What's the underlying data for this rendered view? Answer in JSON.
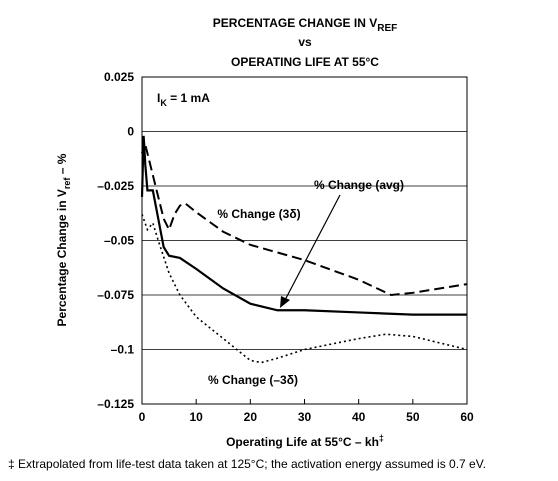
{
  "chart_data": {
    "type": "line",
    "title": [
      "PERCENTAGE CHANGE IN V",
      "vs",
      "OPERATING LIFE AT 55°C"
    ],
    "title_subscript": "REF",
    "ylabel": [
      "Percentage Change in V",
      "ref",
      " – %"
    ],
    "xlabel": [
      "Operating Life at 55°C – kh",
      "‡"
    ],
    "condition": [
      "I",
      "K",
      " = 1 mA"
    ],
    "footnote": "‡ Extrapolated from life-test data taken at 125°C; the activation energy assumed is 0.7 eV.",
    "xlim": [
      0,
      60
    ],
    "xticks": [
      0,
      10,
      20,
      30,
      40,
      50,
      60
    ],
    "ylim": [
      -0.125,
      0.025
    ],
    "yticks": [
      0.025,
      0,
      {
        "value": -0.025,
        "label": "–0.025"
      },
      {
        "value": -0.05,
        "label": "–0.05"
      },
      {
        "value": -0.075,
        "label": "–0.075"
      },
      {
        "value": -0.1,
        "label": "–0.1"
      },
      {
        "value": -0.125,
        "label": "–0.125"
      }
    ],
    "grid": true,
    "series": [
      {
        "name": "% Change  (avg)",
        "color": "#000000",
        "style": "solid",
        "x": [
          0,
          0.3,
          0.6,
          1,
          2,
          3,
          4,
          5,
          7,
          10,
          15,
          20,
          25,
          30,
          40,
          50,
          60
        ],
        "values": [
          -0.03,
          -0.002,
          -0.015,
          -0.027,
          -0.027,
          -0.04,
          -0.053,
          -0.057,
          -0.058,
          -0.063,
          -0.072,
          -0.079,
          -0.082,
          -0.082,
          -0.083,
          -0.084,
          -0.084
        ]
      },
      {
        "name": "% Change  (3δ)",
        "color": "#000000",
        "style": "dashed",
        "x": [
          0,
          0.5,
          1,
          2,
          3,
          4,
          5,
          6,
          7,
          8,
          10,
          15,
          20,
          30,
          40,
          46,
          50,
          60
        ],
        "values": [
          -0.01,
          -0.005,
          -0.01,
          -0.02,
          -0.03,
          -0.04,
          -0.045,
          -0.038,
          -0.034,
          -0.033,
          -0.037,
          -0.046,
          -0.052,
          -0.059,
          -0.068,
          -0.075,
          -0.074,
          -0.07
        ]
      },
      {
        "name": "% Change  (–3δ)",
        "color": "#000000",
        "style": "dotted",
        "x": [
          0,
          1,
          2,
          3,
          5,
          7,
          10,
          15,
          20,
          22,
          25,
          30,
          40,
          45,
          50,
          60
        ],
        "values": [
          -0.038,
          -0.045,
          -0.042,
          -0.05,
          -0.065,
          -0.075,
          -0.085,
          -0.095,
          -0.105,
          -0.106,
          -0.104,
          -0.1,
          -0.095,
          -0.093,
          -0.094,
          -0.1
        ]
      }
    ]
  }
}
